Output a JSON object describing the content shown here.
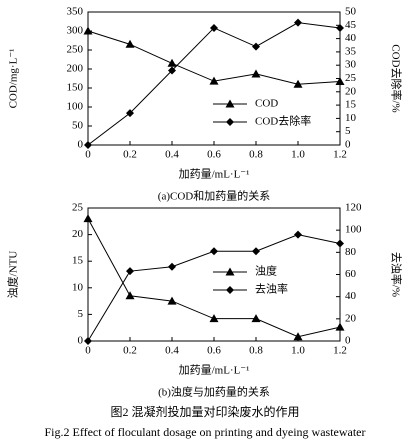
{
  "chart_data": [
    {
      "type": "line",
      "title": "(a)COD和加药量的关系",
      "xlabel": "加药量/mL·L⁻¹",
      "ylabel": "COD/mg·L⁻¹",
      "y2label": "COD去除率/%",
      "x": [
        0,
        0.2,
        0.4,
        0.6,
        0.8,
        1.0,
        1.2
      ],
      "xlim": [
        0,
        1.2
      ],
      "xticks": [
        0,
        0.2,
        0.4,
        0.6,
        0.8,
        {
          "value": 1,
          "label": "1.0"
        },
        1.2
      ],
      "ylim": [
        0,
        350
      ],
      "yticks": [
        0,
        50,
        100,
        150,
        200,
        250,
        300,
        350
      ],
      "y2lim": [
        0,
        50
      ],
      "y2ticks": [
        0,
        5,
        10,
        15,
        20,
        25,
        30,
        35,
        40,
        45,
        50
      ],
      "legend": "lower right",
      "series": [
        {
          "name": "COD",
          "color": "#000000",
          "marker": "triangle",
          "values": [
            300,
            265,
            215,
            168,
            187,
            160,
            167
          ]
        },
        {
          "name": "COD去除率",
          "color": "#000000",
          "marker": "diamond",
          "axis": "y2",
          "values": [
            0,
            12,
            28,
            44,
            37,
            46,
            44
          ]
        }
      ]
    },
    {
      "type": "line",
      "title": "(b)浊度与加药量的关系",
      "xlabel": "加药量/mL·L⁻¹",
      "ylabel": "浊度/NTU",
      "y2label": "去浊率/%",
      "x": [
        0,
        0.2,
        0.4,
        0.6,
        0.8,
        1.0,
        1.2
      ],
      "xlim": [
        0,
        1.2
      ],
      "xticks": [
        0,
        0.2,
        0.4,
        0.6,
        0.8,
        {
          "value": 1,
          "label": "1.0"
        },
        1.2
      ],
      "ylim": [
        0,
        25
      ],
      "yticks": [
        0,
        5,
        10,
        15,
        20,
        25
      ],
      "y2lim": [
        0,
        120
      ],
      "y2ticks": [
        0,
        20,
        40,
        60,
        80,
        100,
        120
      ],
      "legend": "center right",
      "series": [
        {
          "name": "浊度",
          "color": "#000000",
          "marker": "triangle",
          "values": [
            23,
            8.5,
            7.5,
            4.2,
            4.2,
            0.8,
            2.6
          ]
        },
        {
          "name": "去浊率",
          "color": "#000000",
          "marker": "diamond",
          "axis": "y2",
          "values": [
            0,
            63,
            67,
            81,
            81,
            96,
            88
          ]
        }
      ]
    }
  ],
  "caption_cn": "图2  混凝剂投加量对印染废水的作用",
  "caption_en": "Fig.2  Effect of floculant dosage on printing and dyeing wastewater"
}
